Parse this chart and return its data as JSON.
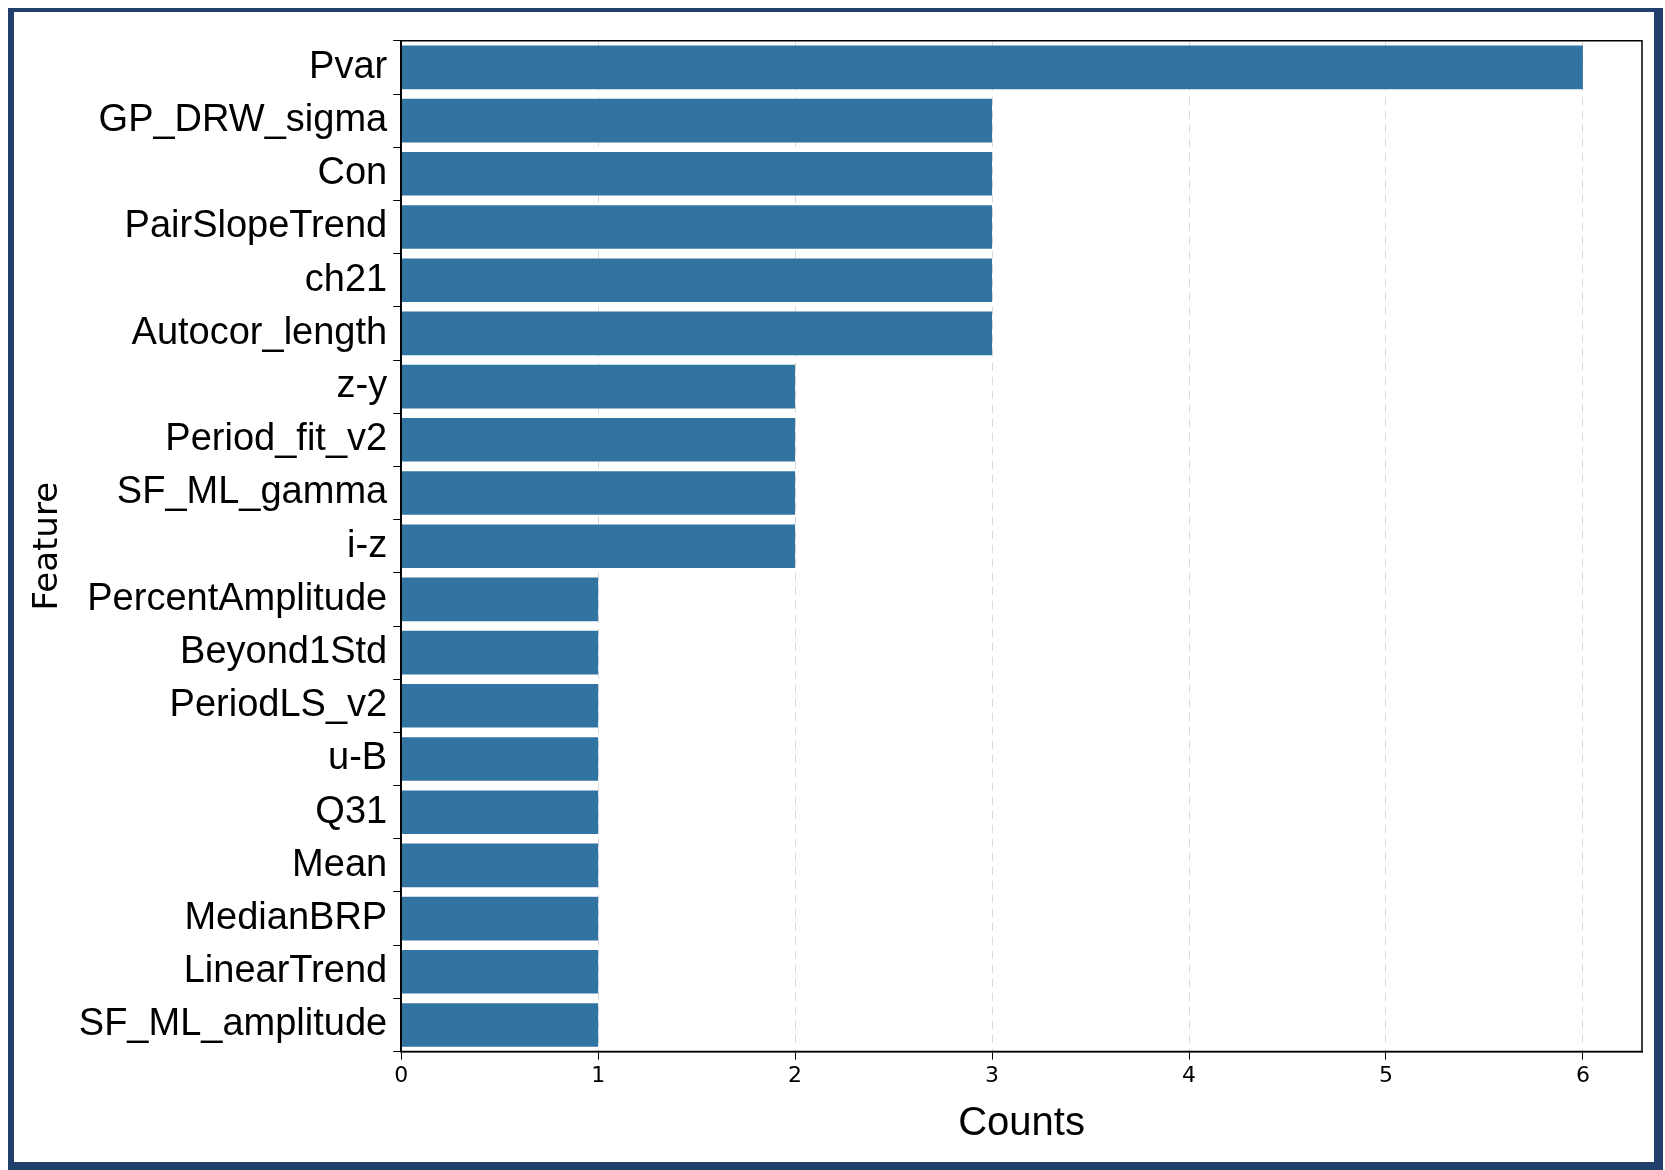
{
  "chart_data": {
    "type": "bar",
    "orientation": "horizontal",
    "xlabel": "Counts",
    "ylabel": "Feature",
    "categories": [
      "Pvar",
      "GP_DRW_sigma",
      "Con",
      "PairSlopeTrend",
      "ch21",
      "Autocor_length",
      "z-y",
      "Period_fit_v2",
      "SF_ML_gamma",
      "i-z",
      "PercentAmplitude",
      "Beyond1Std",
      "PeriodLS_v2",
      "u-B",
      "Q31",
      "Mean",
      "MedianBRP",
      "LinearTrend",
      "SF_ML_amplitude"
    ],
    "values": [
      6,
      3,
      3,
      3,
      3,
      3,
      2,
      2,
      2,
      2,
      1,
      1,
      1,
      1,
      1,
      1,
      1,
      1,
      1
    ],
    "color": "#3274a1",
    "xlim": [
      0,
      6.3
    ],
    "xticks": [
      0,
      1,
      2,
      3,
      4,
      5,
      6
    ],
    "grid": "x",
    "line_style": "dashed",
    "legend": false
  }
}
